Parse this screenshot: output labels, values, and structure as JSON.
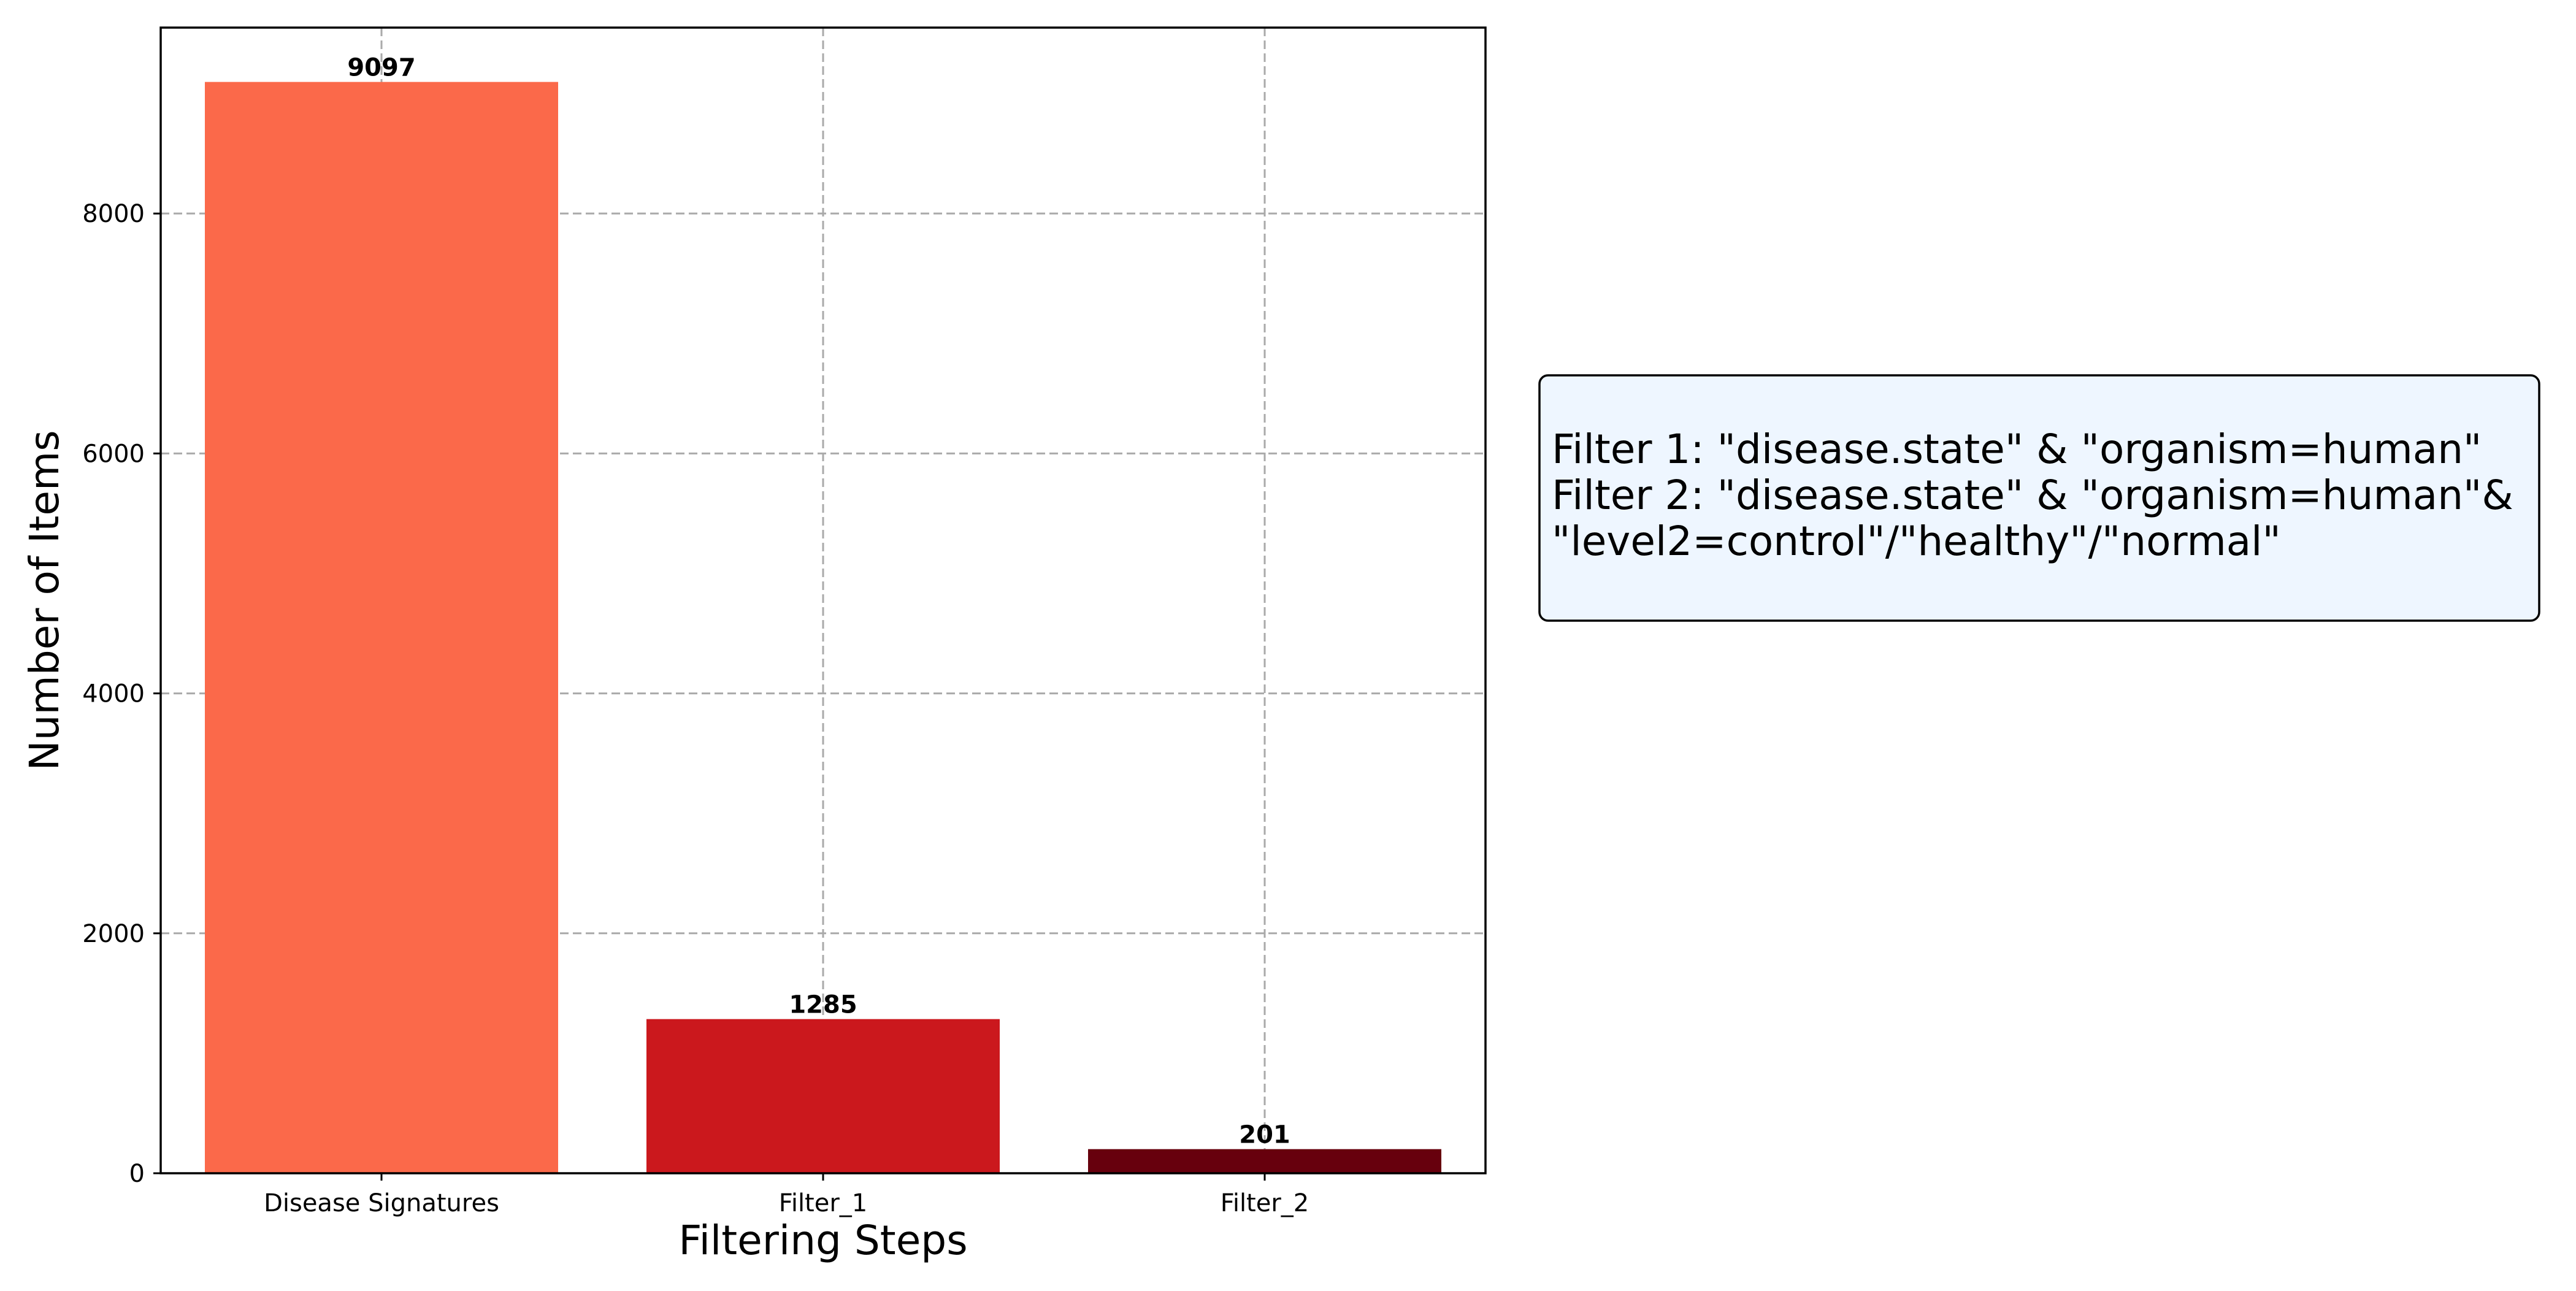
{
  "chart_data": {
    "type": "bar",
    "categories": [
      "Disease Signatures",
      "Filter_1",
      "Filter_2"
    ],
    "values": [
      9097,
      1285,
      201
    ],
    "data_labels": [
      "9097",
      "1285",
      "201"
    ],
    "title": "",
    "xlabel": "Filtering Steps",
    "ylabel": "Number of Items",
    "ylim": [
      0,
      9550
    ],
    "yticks": [
      0,
      2000,
      4000,
      6000,
      8000
    ],
    "ytick_labels": [
      "0",
      "2000",
      "4000",
      "6000",
      "8000"
    ],
    "grid": true,
    "grid_style": "dashed",
    "colors": [
      "#fb694a",
      "#cb181d",
      "#67000d"
    ]
  },
  "annotation": {
    "lines": [
      "Filter 1: \"disease.state\" & \"organism=human\"",
      "Filter 2: \"disease.state\" & \"organism=human\"&",
      "\"level2=control\"/\"healthy\"/\"normal\""
    ],
    "background": "#eef6ff",
    "border": "#000000"
  }
}
